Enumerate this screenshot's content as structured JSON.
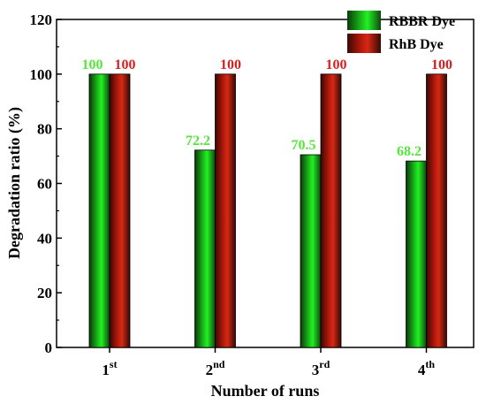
{
  "chart_data": {
    "type": "bar",
    "xlabel": "Number of runs",
    "ylabel": "Degradation ratio (%)",
    "ylim": [
      0,
      120
    ],
    "yticks": [
      "0",
      "20",
      "40",
      "60",
      "80",
      "100",
      "120"
    ],
    "categories": [
      {
        "base": "1",
        "sup": "st"
      },
      {
        "base": "2",
        "sup": "nd"
      },
      {
        "base": "3",
        "sup": "rd"
      },
      {
        "base": "4",
        "sup": "th"
      }
    ],
    "series": [
      {
        "name": "RBBR Dye",
        "values": [
          100,
          72.2,
          70.5,
          68.2
        ],
        "labels": [
          "100",
          "72.2",
          "70.5",
          "68.2"
        ],
        "color": "#00e000",
        "label_color": "#55e63c"
      },
      {
        "name": "RhB Dye",
        "values": [
          100,
          100,
          100,
          100
        ],
        "labels": [
          "100",
          "100",
          "100",
          "100"
        ],
        "color": "#c41a10",
        "label_color": "#d62020"
      }
    ],
    "legend_position": "top-right",
    "grid": false
  }
}
